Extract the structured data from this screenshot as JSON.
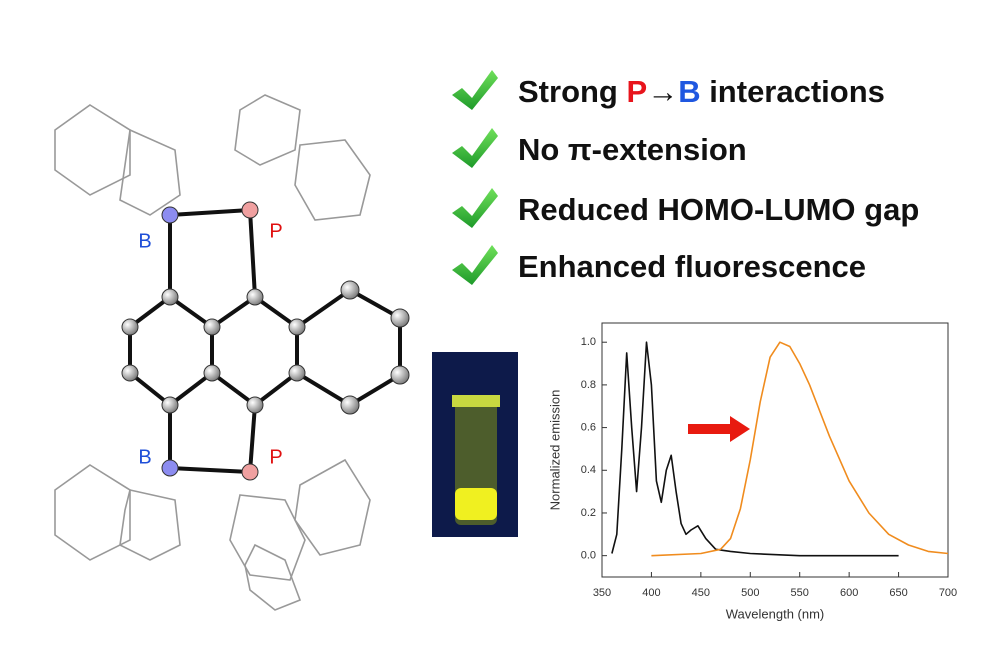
{
  "bullets": [
    {
      "segments": [
        {
          "text": "Strong "
        },
        {
          "text": "P",
          "color": "#e8141c"
        },
        {
          "text": "→"
        },
        {
          "text": "B",
          "color": "#1f57e0"
        },
        {
          "text": " interactions"
        }
      ]
    },
    {
      "segments": [
        {
          "text": "No π-extension"
        }
      ]
    },
    {
      "segments": [
        {
          "text": "Reduced HOMO-LUMO gap"
        }
      ]
    },
    {
      "segments": [
        {
          "text": "Enhanced fluorescence"
        }
      ]
    }
  ],
  "atom_labels": [
    {
      "text": "B",
      "color": "#1f4fd8"
    },
    {
      "text": "P",
      "color": "#e01010"
    },
    {
      "text": "B",
      "color": "#1f4fd8"
    },
    {
      "text": "P",
      "color": "#e01010"
    }
  ],
  "chart_data": {
    "type": "line",
    "x_label": "Wavelength (nm)",
    "y_label": "Normalized emission",
    "xlim": [
      350,
      700
    ],
    "xticks": [
      350,
      400,
      450,
      500,
      550,
      600,
      650,
      700
    ],
    "ylim": [
      -0.1,
      1.09
    ],
    "yticks": [
      {
        "value": 0,
        "label": "0.0"
      },
      0.2,
      0.4,
      0.6,
      0.8,
      {
        "value": 1,
        "label": "1.0"
      }
    ],
    "series": [
      {
        "color": "#111111",
        "x": [
          360,
          365,
          370,
          375,
          380,
          385,
          390,
          395,
          400,
          405,
          410,
          415,
          420,
          425,
          430,
          435,
          440,
          447,
          455,
          465,
          480,
          500,
          550,
          600,
          650
        ],
        "values": [
          0.01,
          0.1,
          0.5,
          0.95,
          0.6,
          0.3,
          0.6,
          1.0,
          0.8,
          0.35,
          0.25,
          0.4,
          0.47,
          0.3,
          0.15,
          0.1,
          0.12,
          0.14,
          0.08,
          0.03,
          0.02,
          0.01,
          0.0,
          0.0,
          0.0
        ]
      },
      {
        "color": "#f08c1e",
        "x": [
          400,
          450,
          470,
          480,
          490,
          500,
          510,
          520,
          530,
          540,
          550,
          560,
          570,
          580,
          600,
          620,
          640,
          660,
          680,
          700
        ],
        "values": [
          0,
          0.01,
          0.03,
          0.08,
          0.22,
          0.45,
          0.72,
          0.93,
          1.0,
          0.98,
          0.9,
          0.8,
          0.68,
          0.56,
          0.35,
          0.2,
          0.1,
          0.05,
          0.02,
          0.01
        ]
      }
    ]
  }
}
